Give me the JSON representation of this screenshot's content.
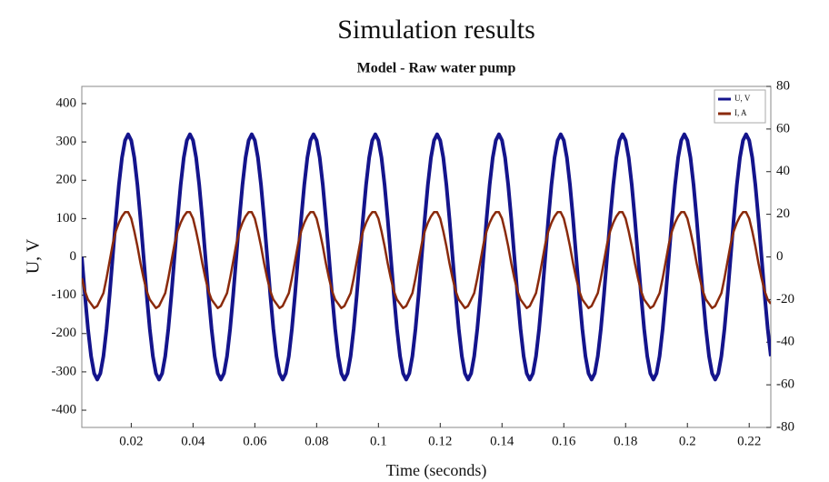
{
  "chart_data": {
    "type": "line",
    "title": "Simulation results",
    "subtitle": "Model - Raw water pump",
    "xlabel": "Time (seconds)",
    "ylabel": "U, V",
    "x": [
      0.004,
      0.005,
      0.006,
      0.007,
      0.008,
      0.009,
      0.01,
      0.011,
      0.012,
      0.013,
      0.014,
      0.015,
      0.016,
      0.017,
      0.018,
      0.019,
      0.02,
      0.021,
      0.022,
      0.023,
      0.024,
      0.025,
      0.026,
      0.027,
      0.028,
      0.029,
      0.03,
      0.031,
      0.032,
      0.033,
      0.034,
      0.035,
      0.036,
      0.037,
      0.038,
      0.039,
      0.04,
      0.041,
      0.042,
      0.043,
      0.044,
      0.045,
      0.046,
      0.047,
      0.048,
      0.049,
      0.05,
      0.051,
      0.052,
      0.053,
      0.054,
      0.055,
      0.056,
      0.057,
      0.058,
      0.059,
      0.06,
      0.061,
      0.062,
      0.063,
      0.064,
      0.065,
      0.066,
      0.067,
      0.068,
      0.069,
      0.07,
      0.071,
      0.072,
      0.073,
      0.074,
      0.075,
      0.076,
      0.077,
      0.078,
      0.079,
      0.08,
      0.081,
      0.082,
      0.083,
      0.084,
      0.085,
      0.086,
      0.087,
      0.088,
      0.089,
      0.09,
      0.091,
      0.092,
      0.093,
      0.094,
      0.095,
      0.096,
      0.097,
      0.098,
      0.099,
      0.1,
      0.101,
      0.102,
      0.103,
      0.104,
      0.105,
      0.106,
      0.107,
      0.108,
      0.109,
      0.11,
      0.111,
      0.112,
      0.113,
      0.114,
      0.115,
      0.116,
      0.117,
      0.118,
      0.119,
      0.12,
      0.121,
      0.122,
      0.123,
      0.124,
      0.125,
      0.126,
      0.127,
      0.128,
      0.129,
      0.13,
      0.131,
      0.132,
      0.133,
      0.134,
      0.135,
      0.136,
      0.137,
      0.138,
      0.139,
      0.14,
      0.141,
      0.142,
      0.143,
      0.144,
      0.145,
      0.146,
      0.147,
      0.148,
      0.149,
      0.15,
      0.151,
      0.152,
      0.153,
      0.154,
      0.155,
      0.156,
      0.157,
      0.158,
      0.159,
      0.16,
      0.161,
      0.162,
      0.163,
      0.164,
      0.165,
      0.166,
      0.167,
      0.168,
      0.169,
      0.17,
      0.171,
      0.172,
      0.173,
      0.174,
      0.175,
      0.176,
      0.177,
      0.178,
      0.179,
      0.18,
      0.181,
      0.182,
      0.183,
      0.184,
      0.185,
      0.186,
      0.187,
      0.188,
      0.189,
      0.19,
      0.191,
      0.192,
      0.193,
      0.194,
      0.195,
      0.196,
      0.197,
      0.198,
      0.199,
      0.2,
      0.201,
      0.202,
      0.203,
      0.204,
      0.205,
      0.206,
      0.207,
      0.208,
      0.209,
      0.21,
      0.211,
      0.212,
      0.213,
      0.214,
      0.215,
      0.216,
      0.217,
      0.218,
      0.219,
      0.22,
      0.221,
      0.222,
      0.223,
      0.224,
      0.225,
      0.226,
      0.227
    ],
    "series": [
      {
        "name": "U, V",
        "color": "#14148c",
        "axis": "y",
        "values": [
          0,
          -99,
          -188,
          -259,
          -304,
          -320,
          -304,
          -259,
          -188,
          -99,
          0,
          99,
          188,
          259,
          304,
          320,
          304,
          259,
          188,
          99,
          0,
          -99,
          -188,
          -259,
          -304,
          -320,
          -304,
          -259,
          -188,
          -99,
          0,
          99,
          188,
          259,
          304,
          320,
          304,
          259,
          188,
          99,
          0,
          -99,
          -188,
          -259,
          -304,
          -320,
          -304,
          -259,
          -188,
          -99,
          0,
          99,
          188,
          259,
          304,
          320,
          304,
          259,
          188,
          99,
          0,
          -99,
          -188,
          -259,
          -304,
          -320,
          -304,
          -259,
          -188,
          -99,
          0,
          99,
          188,
          259,
          304,
          320,
          304,
          259,
          188,
          99,
          0,
          -99,
          -188,
          -259,
          -304,
          -320,
          -304,
          -259,
          -188,
          -99,
          0,
          99,
          188,
          259,
          304,
          320,
          304,
          259,
          188,
          99,
          0,
          -99,
          -188,
          -259,
          -304,
          -320,
          -304,
          -259,
          -188,
          -99,
          0,
          99,
          188,
          259,
          304,
          320,
          304,
          259,
          188,
          99,
          0,
          -99,
          -188,
          -259,
          -304,
          -320,
          -304,
          -259,
          -188,
          -99,
          0,
          99,
          188,
          259,
          304,
          320,
          304,
          259,
          188,
          99,
          0,
          -99,
          -188,
          -259,
          -304,
          -320,
          -304,
          -259,
          -188,
          -99,
          0,
          99,
          188,
          259,
          304,
          320,
          304,
          259,
          188,
          99,
          0,
          -99,
          -188,
          -259,
          -304,
          -320,
          -304,
          -259,
          -188,
          -99,
          0,
          99,
          188,
          259,
          304,
          320,
          304,
          259,
          188,
          99,
          0,
          -99,
          -188,
          -259,
          -304,
          -320,
          -304,
          -259,
          -188,
          -99,
          0,
          99,
          188,
          259,
          304,
          320,
          304,
          259,
          188,
          99,
          0,
          -99,
          -188,
          -259,
          -304,
          -320,
          -304,
          -259,
          -188,
          -99,
          0,
          99,
          188,
          259,
          304,
          320,
          304,
          259,
          188,
          99,
          0,
          -99,
          -188,
          -259
        ]
      },
      {
        "name": "I, A",
        "color": "#8a2a0c",
        "axis": "y2",
        "values": [
          -10,
          -16,
          -20,
          -22,
          -24,
          -23,
          -20,
          -17,
          -10,
          -2,
          6,
          12,
          16,
          19,
          21,
          21,
          18,
          12,
          5,
          -3,
          -10,
          -16,
          -20,
          -22,
          -24,
          -23,
          -20,
          -17,
          -10,
          -2,
          6,
          12,
          16,
          19,
          21,
          21,
          18,
          12,
          5,
          -3,
          -10,
          -16,
          -20,
          -22,
          -24,
          -23,
          -20,
          -17,
          -10,
          -2,
          6,
          12,
          16,
          19,
          21,
          21,
          18,
          12,
          5,
          -3,
          -10,
          -16,
          -20,
          -22,
          -24,
          -23,
          -20,
          -17,
          -10,
          -2,
          6,
          12,
          16,
          19,
          21,
          21,
          18,
          12,
          5,
          -3,
          -10,
          -16,
          -20,
          -22,
          -24,
          -23,
          -20,
          -17,
          -10,
          -2,
          6,
          12,
          16,
          19,
          21,
          21,
          18,
          12,
          5,
          -3,
          -10,
          -16,
          -20,
          -22,
          -24,
          -23,
          -20,
          -17,
          -10,
          -2,
          6,
          12,
          16,
          19,
          21,
          21,
          18,
          12,
          5,
          -3,
          -10,
          -16,
          -20,
          -22,
          -24,
          -23,
          -20,
          -17,
          -10,
          -2,
          6,
          12,
          16,
          19,
          21,
          21,
          18,
          12,
          5,
          -3,
          -10,
          -16,
          -20,
          -22,
          -24,
          -23,
          -20,
          -17,
          -10,
          -2,
          6,
          12,
          16,
          19,
          21,
          21,
          18,
          12,
          5,
          -3,
          -10,
          -16,
          -20,
          -22,
          -24,
          -23,
          -20,
          -17,
          -10,
          -2,
          6,
          12,
          16,
          19,
          21,
          21,
          18,
          12,
          5,
          -3,
          -10,
          -16,
          -20,
          -22,
          -24,
          -23,
          -20,
          -17,
          -10,
          -2,
          6,
          12,
          16,
          19,
          21,
          21,
          18,
          12,
          5,
          -3,
          -10,
          -16,
          -20,
          -22,
          -24,
          -23,
          -20,
          -17,
          -10,
          -2,
          6,
          12,
          16,
          19,
          21,
          21,
          18,
          12,
          5,
          -3,
          -10,
          -16,
          -20,
          -22
        ]
      }
    ],
    "xlim": [
      0.004,
      0.227
    ],
    "xticks": [
      0.02,
      0.04,
      0.06,
      0.08,
      0.1,
      0.12,
      0.14,
      0.16,
      0.18,
      0.2,
      0.22
    ],
    "ylim": [
      -445,
      445
    ],
    "yticks": [
      -400,
      -300,
      -200,
      -100,
      0,
      100,
      200,
      300,
      400
    ],
    "y2lim": [
      -80,
      80
    ],
    "y2ticks": [
      -80,
      -60,
      -40,
      -20,
      0,
      20,
      40,
      60,
      80
    ],
    "grid": false,
    "legend": "upper right"
  }
}
